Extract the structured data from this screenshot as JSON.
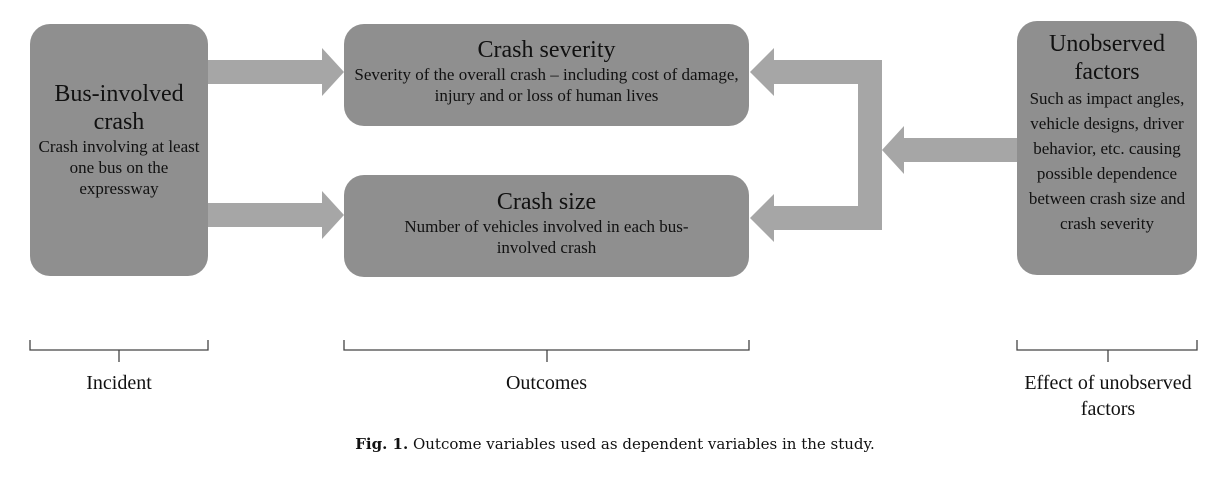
{
  "boxes": {
    "bus": {
      "title": "Bus-involved crash",
      "description": "Crash involving at least one bus on the expressway"
    },
    "severity": {
      "title": "Crash severity",
      "description": "Severity of the overall crash – including cost of damage, injury and or loss of human lives"
    },
    "size": {
      "title": "Crash size",
      "description": "Number of vehicles involved in each bus-involved crash"
    },
    "unobserved": {
      "title": "Unobserved factors",
      "description": "Such as impact angles, vehicle designs, driver behavior, etc. causing possible dependence between crash size and crash severity"
    }
  },
  "groups": {
    "incident": "Incident",
    "outcomes": "Outcomes",
    "effect": "Effect of unobserved factors"
  },
  "caption": {
    "label": "Fig. 1.",
    "text": "Outcome variables used as dependent variables in the study."
  },
  "colors": {
    "box": "#8f8f8f",
    "arrow": "#a6a6a6",
    "bracket": "#444444"
  }
}
